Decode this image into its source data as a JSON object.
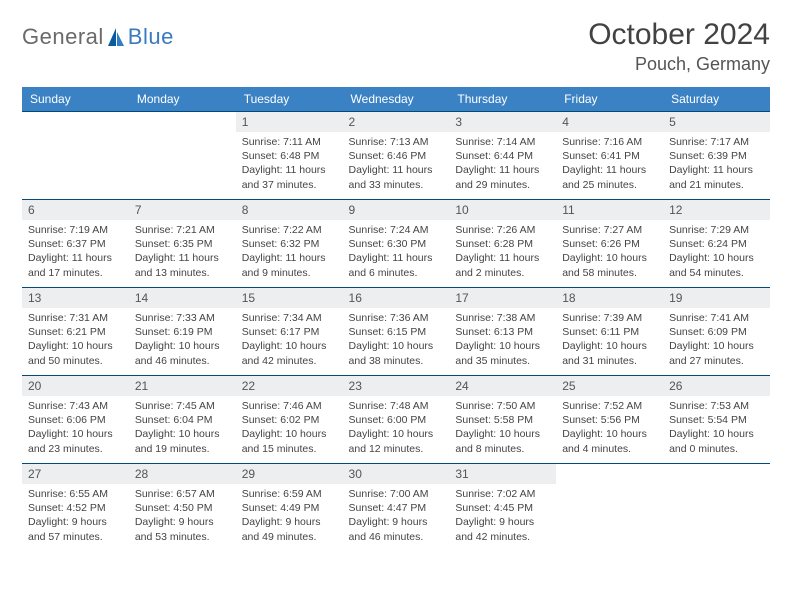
{
  "logo": {
    "general": "General",
    "blue": "Blue"
  },
  "title": "October 2024",
  "location": "Pouch, Germany",
  "colors": {
    "header_bg": "#3a82c4",
    "header_text": "#ffffff",
    "border": "#024a7a",
    "daynum_bg": "#eceeef",
    "logo_gray": "#6a6a6a",
    "logo_blue": "#3a7abf"
  },
  "day_headers": [
    "Sunday",
    "Monday",
    "Tuesday",
    "Wednesday",
    "Thursday",
    "Friday",
    "Saturday"
  ],
  "weeks": [
    [
      null,
      null,
      {
        "n": "1",
        "sr": "Sunrise: 7:11 AM",
        "ss": "Sunset: 6:48 PM",
        "d1": "Daylight: 11 hours",
        "d2": "and 37 minutes."
      },
      {
        "n": "2",
        "sr": "Sunrise: 7:13 AM",
        "ss": "Sunset: 6:46 PM",
        "d1": "Daylight: 11 hours",
        "d2": "and 33 minutes."
      },
      {
        "n": "3",
        "sr": "Sunrise: 7:14 AM",
        "ss": "Sunset: 6:44 PM",
        "d1": "Daylight: 11 hours",
        "d2": "and 29 minutes."
      },
      {
        "n": "4",
        "sr": "Sunrise: 7:16 AM",
        "ss": "Sunset: 6:41 PM",
        "d1": "Daylight: 11 hours",
        "d2": "and 25 minutes."
      },
      {
        "n": "5",
        "sr": "Sunrise: 7:17 AM",
        "ss": "Sunset: 6:39 PM",
        "d1": "Daylight: 11 hours",
        "d2": "and 21 minutes."
      }
    ],
    [
      {
        "n": "6",
        "sr": "Sunrise: 7:19 AM",
        "ss": "Sunset: 6:37 PM",
        "d1": "Daylight: 11 hours",
        "d2": "and 17 minutes."
      },
      {
        "n": "7",
        "sr": "Sunrise: 7:21 AM",
        "ss": "Sunset: 6:35 PM",
        "d1": "Daylight: 11 hours",
        "d2": "and 13 minutes."
      },
      {
        "n": "8",
        "sr": "Sunrise: 7:22 AM",
        "ss": "Sunset: 6:32 PM",
        "d1": "Daylight: 11 hours",
        "d2": "and 9 minutes."
      },
      {
        "n": "9",
        "sr": "Sunrise: 7:24 AM",
        "ss": "Sunset: 6:30 PM",
        "d1": "Daylight: 11 hours",
        "d2": "and 6 minutes."
      },
      {
        "n": "10",
        "sr": "Sunrise: 7:26 AM",
        "ss": "Sunset: 6:28 PM",
        "d1": "Daylight: 11 hours",
        "d2": "and 2 minutes."
      },
      {
        "n": "11",
        "sr": "Sunrise: 7:27 AM",
        "ss": "Sunset: 6:26 PM",
        "d1": "Daylight: 10 hours",
        "d2": "and 58 minutes."
      },
      {
        "n": "12",
        "sr": "Sunrise: 7:29 AM",
        "ss": "Sunset: 6:24 PM",
        "d1": "Daylight: 10 hours",
        "d2": "and 54 minutes."
      }
    ],
    [
      {
        "n": "13",
        "sr": "Sunrise: 7:31 AM",
        "ss": "Sunset: 6:21 PM",
        "d1": "Daylight: 10 hours",
        "d2": "and 50 minutes."
      },
      {
        "n": "14",
        "sr": "Sunrise: 7:33 AM",
        "ss": "Sunset: 6:19 PM",
        "d1": "Daylight: 10 hours",
        "d2": "and 46 minutes."
      },
      {
        "n": "15",
        "sr": "Sunrise: 7:34 AM",
        "ss": "Sunset: 6:17 PM",
        "d1": "Daylight: 10 hours",
        "d2": "and 42 minutes."
      },
      {
        "n": "16",
        "sr": "Sunrise: 7:36 AM",
        "ss": "Sunset: 6:15 PM",
        "d1": "Daylight: 10 hours",
        "d2": "and 38 minutes."
      },
      {
        "n": "17",
        "sr": "Sunrise: 7:38 AM",
        "ss": "Sunset: 6:13 PM",
        "d1": "Daylight: 10 hours",
        "d2": "and 35 minutes."
      },
      {
        "n": "18",
        "sr": "Sunrise: 7:39 AM",
        "ss": "Sunset: 6:11 PM",
        "d1": "Daylight: 10 hours",
        "d2": "and 31 minutes."
      },
      {
        "n": "19",
        "sr": "Sunrise: 7:41 AM",
        "ss": "Sunset: 6:09 PM",
        "d1": "Daylight: 10 hours",
        "d2": "and 27 minutes."
      }
    ],
    [
      {
        "n": "20",
        "sr": "Sunrise: 7:43 AM",
        "ss": "Sunset: 6:06 PM",
        "d1": "Daylight: 10 hours",
        "d2": "and 23 minutes."
      },
      {
        "n": "21",
        "sr": "Sunrise: 7:45 AM",
        "ss": "Sunset: 6:04 PM",
        "d1": "Daylight: 10 hours",
        "d2": "and 19 minutes."
      },
      {
        "n": "22",
        "sr": "Sunrise: 7:46 AM",
        "ss": "Sunset: 6:02 PM",
        "d1": "Daylight: 10 hours",
        "d2": "and 15 minutes."
      },
      {
        "n": "23",
        "sr": "Sunrise: 7:48 AM",
        "ss": "Sunset: 6:00 PM",
        "d1": "Daylight: 10 hours",
        "d2": "and 12 minutes."
      },
      {
        "n": "24",
        "sr": "Sunrise: 7:50 AM",
        "ss": "Sunset: 5:58 PM",
        "d1": "Daylight: 10 hours",
        "d2": "and 8 minutes."
      },
      {
        "n": "25",
        "sr": "Sunrise: 7:52 AM",
        "ss": "Sunset: 5:56 PM",
        "d1": "Daylight: 10 hours",
        "d2": "and 4 minutes."
      },
      {
        "n": "26",
        "sr": "Sunrise: 7:53 AM",
        "ss": "Sunset: 5:54 PM",
        "d1": "Daylight: 10 hours",
        "d2": "and 0 minutes."
      }
    ],
    [
      {
        "n": "27",
        "sr": "Sunrise: 6:55 AM",
        "ss": "Sunset: 4:52 PM",
        "d1": "Daylight: 9 hours",
        "d2": "and 57 minutes."
      },
      {
        "n": "28",
        "sr": "Sunrise: 6:57 AM",
        "ss": "Sunset: 4:50 PM",
        "d1": "Daylight: 9 hours",
        "d2": "and 53 minutes."
      },
      {
        "n": "29",
        "sr": "Sunrise: 6:59 AM",
        "ss": "Sunset: 4:49 PM",
        "d1": "Daylight: 9 hours",
        "d2": "and 49 minutes."
      },
      {
        "n": "30",
        "sr": "Sunrise: 7:00 AM",
        "ss": "Sunset: 4:47 PM",
        "d1": "Daylight: 9 hours",
        "d2": "and 46 minutes."
      },
      {
        "n": "31",
        "sr": "Sunrise: 7:02 AM",
        "ss": "Sunset: 4:45 PM",
        "d1": "Daylight: 9 hours",
        "d2": "and 42 minutes."
      },
      null,
      null
    ]
  ]
}
